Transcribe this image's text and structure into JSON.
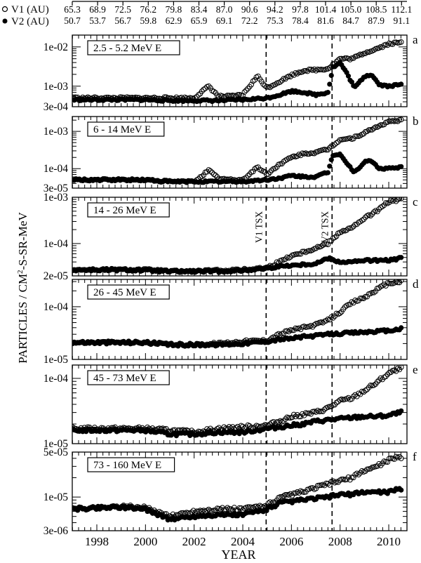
{
  "chart_data": {
    "type": "scatter",
    "title": "",
    "xlabel": "YEAR",
    "ylabel": "PARTICLES / CM^2-S-SR-MeV",
    "x_ticks": [
      "1998",
      "2000",
      "2002",
      "2004",
      "2006",
      "2008",
      "2010"
    ],
    "xlim": [
      1997.0,
      2010.8
    ],
    "legend": [
      {
        "name": "V1 (AU)",
        "marker": "open-circle"
      },
      {
        "name": "V2 (AU)",
        "marker": "filled-circle"
      }
    ],
    "top_axis": {
      "v1_au": [
        "65.3",
        "68.9",
        "72.5",
        "76.2",
        "79.8",
        "83.4",
        "87.0",
        "90.6",
        "94.2",
        "97.8",
        "101.4",
        "105.0",
        "108.5",
        "112.1"
      ],
      "v2_au": [
        "50.7",
        "53.7",
        "56.7",
        "59.8",
        "62.9",
        "65.9",
        "69.1",
        "72.2",
        "75.3",
        "78.4",
        "81.6",
        "84.7",
        "87.9",
        "91.1"
      ]
    },
    "markers": [
      {
        "label": "V1 TSX",
        "x": 2004.96
      },
      {
        "label": "V2 TSX",
        "x": 2007.67
      }
    ],
    "panels": [
      {
        "id": "a",
        "label": "2.5 - 5.2 MeV E",
        "y_ticks": [
          "3e-04",
          "1e-03",
          "1e-02"
        ],
        "ylim": [
          0.0003,
          0.02
        ],
        "series": [
          {
            "name": "V1",
            "x": [
              1997,
              1998,
              1999,
              2000,
              2001,
              2002,
              2002.6,
              2003,
              2003.5,
              2004,
              2004.6,
              2005,
              2005.5,
              2006,
              2006.5,
              2007,
              2007.5,
              2008,
              2008.5,
              2009,
              2009.5,
              2010,
              2010.5
            ],
            "values": [
              0.0005,
              0.0005,
              0.0005,
              0.0005,
              0.0005,
              0.0005,
              0.001,
              0.00055,
              0.00055,
              0.0006,
              0.0018,
              0.0009,
              0.0013,
              0.0019,
              0.0025,
              0.0026,
              0.0028,
              0.005,
              0.005,
              0.007,
              0.009,
              0.012,
              0.013
            ]
          },
          {
            "name": "V2",
            "x": [
              1997,
              1998,
              1999,
              2000,
              2001,
              2002,
              2003,
              2004,
              2005,
              2005.5,
              2006,
              2006.5,
              2007,
              2007.5,
              2007.7,
              2008,
              2008.3,
              2008.6,
              2009,
              2009.3,
              2009.6,
              2010,
              2010.5
            ],
            "values": [
              0.00045,
              0.00045,
              0.00045,
              0.00045,
              0.00043,
              0.00043,
              0.00043,
              0.00045,
              0.0005,
              0.0006,
              0.00075,
              0.0007,
              0.0006,
              0.0007,
              0.003,
              0.004,
              0.002,
              0.0009,
              0.0018,
              0.002,
              0.0011,
              0.001,
              0.0011
            ]
          }
        ]
      },
      {
        "id": "b",
        "label": "6 - 14 MeV E",
        "y_ticks": [
          "3e-05",
          "1e-04",
          "1e-03"
        ],
        "ylim": [
          3e-05,
          0.0025
        ],
        "series": [
          {
            "name": "V1",
            "x": [
              1997,
              1998,
              1999,
              2000,
              2001,
              2002,
              2002.6,
              2003,
              2003.5,
              2004,
              2004.6,
              2005,
              2005.5,
              2006,
              2006.5,
              2007,
              2007.5,
              2008,
              2008.5,
              2009,
              2009.5,
              2010,
              2010.5
            ],
            "values": [
              5e-05,
              5e-05,
              5e-05,
              5e-05,
              4.5e-05,
              4.5e-05,
              9e-05,
              5.5e-05,
              5e-05,
              5e-05,
              0.00011,
              7e-05,
              0.00013,
              0.0002,
              0.00025,
              0.00027,
              0.00033,
              0.0006,
              0.00065,
              0.0009,
              0.0013,
              0.0018,
              0.002
            ]
          },
          {
            "name": "V2",
            "x": [
              1997,
              1998,
              1999,
              2000,
              2001,
              2002,
              2003,
              2004,
              2005,
              2005.5,
              2006,
              2006.5,
              2007,
              2007.5,
              2007.7,
              2008,
              2008.3,
              2008.6,
              2009,
              2009.3,
              2009.6,
              2010,
              2010.5
            ],
            "values": [
              5e-05,
              5e-05,
              5e-05,
              5e-05,
              4.5e-05,
              4.5e-05,
              4.5e-05,
              4.5e-05,
              5e-05,
              5.5e-05,
              6.5e-05,
              6e-05,
              6e-05,
              8e-05,
              0.00023,
              0.00025,
              0.00013,
              8e-05,
              0.00015,
              0.00016,
              0.0001,
              0.0001,
              0.00011
            ]
          }
        ]
      },
      {
        "id": "c",
        "label": "14 - 26 MeV E",
        "y_ticks": [
          "2e-05",
          "1e-04",
          "1e-03"
        ],
        "ylim": [
          2e-05,
          0.001
        ],
        "series": [
          {
            "name": "V1",
            "x": [
              1997,
              1998,
              1999,
              2000,
              2001,
              2002,
              2003,
              2004,
              2005,
              2005.5,
              2006,
              2006.5,
              2007,
              2007.5,
              2008,
              2008.5,
              2009,
              2009.5,
              2010,
              2010.5
            ],
            "values": [
              2.7e-05,
              2.7e-05,
              2.7e-05,
              2.7e-05,
              2.5e-05,
              2.5e-05,
              2.6e-05,
              2.7e-05,
              3e-05,
              4e-05,
              5.5e-05,
              6.5e-05,
              8e-05,
              0.0001,
              0.00018,
              0.00022,
              0.00035,
              0.0005,
              0.0008,
              0.0009
            ]
          },
          {
            "name": "V2",
            "x": [
              1997,
              1998,
              1999,
              2000,
              2001,
              2002,
              2003,
              2004,
              2005,
              2005.5,
              2006,
              2006.5,
              2007,
              2007.5,
              2008,
              2008.5,
              2009,
              2009.5,
              2010,
              2010.5
            ],
            "values": [
              2.7e-05,
              2.7e-05,
              2.7e-05,
              2.6e-05,
              2.5e-05,
              2.5e-05,
              2.5e-05,
              2.6e-05,
              2.9e-05,
              3.2e-05,
              3.4e-05,
              3.5e-05,
              3.7e-05,
              4.8e-05,
              4e-05,
              4e-05,
              4.3e-05,
              4.3e-05,
              4.3e-05,
              4.8e-05
            ]
          }
        ]
      },
      {
        "id": "d",
        "label": "26 - 45 MeV E",
        "y_ticks": [
          "1e-05",
          "1e-04"
        ],
        "ylim": [
          1e-05,
          0.00033
        ],
        "series": [
          {
            "name": "V1",
            "x": [
              1997,
              1998,
              1999,
              2000,
              2001,
              2002,
              2003,
              2004,
              2005,
              2005.5,
              2006,
              2006.5,
              2007,
              2007.5,
              2008,
              2008.5,
              2009,
              2009.5,
              2010,
              2010.5
            ],
            "values": [
              2.1e-05,
              2.1e-05,
              2.1e-05,
              2.1e-05,
              1.9e-05,
              1.9e-05,
              2e-05,
              2.2e-05,
              2.3e-05,
              3e-05,
              3.6e-05,
              4e-05,
              4.5e-05,
              5.5e-05,
              8e-05,
              0.00012,
              0.00015,
              0.00021,
              0.00028,
              0.0003
            ]
          },
          {
            "name": "V2",
            "x": [
              1997,
              1998,
              1999,
              2000,
              2001,
              2002,
              2003,
              2004,
              2005,
              2005.5,
              2006,
              2006.5,
              2007,
              2007.5,
              2008,
              2008.5,
              2009,
              2009.5,
              2010,
              2010.5
            ],
            "values": [
              2.1e-05,
              2.1e-05,
              2.1e-05,
              2.1e-05,
              1.9e-05,
              1.9e-05,
              1.9e-05,
              2e-05,
              2.2e-05,
              2.4e-05,
              2.5e-05,
              2.7e-05,
              2.8e-05,
              3e-05,
              3.1e-05,
              3.2e-05,
              3.3e-05,
              3.4e-05,
              3.5e-05,
              3.8e-05
            ]
          }
        ]
      },
      {
        "id": "e",
        "label": "45 - 73 MeV E",
        "y_ticks": [
          "1e-05",
          "1e-04"
        ],
        "ylim": [
          1e-05,
          0.00016
        ],
        "series": [
          {
            "name": "V1",
            "x": [
              1997,
              1998,
              1999,
              2000,
              2001,
              2002,
              2003,
              2004,
              2005,
              2005.5,
              2006,
              2006.5,
              2007,
              2007.5,
              2008,
              2008.5,
              2009,
              2009.5,
              2010,
              2010.5
            ],
            "values": [
              1.7e-05,
              1.7e-05,
              1.7e-05,
              1.7e-05,
              1.6e-05,
              1.5e-05,
              1.7e-05,
              1.8e-05,
              1.9e-05,
              2.2e-05,
              2.6e-05,
              2.8e-05,
              3e-05,
              3.5e-05,
              4.5e-05,
              5e-05,
              6.5e-05,
              8.5e-05,
              0.00012,
              0.00014
            ]
          },
          {
            "name": "V2",
            "x": [
              1997,
              1998,
              1999,
              2000,
              2001,
              2002,
              2003,
              2004,
              2005,
              2005.5,
              2006,
              2006.5,
              2007,
              2007.5,
              2008,
              2008.5,
              2009,
              2009.5,
              2010,
              2010.5
            ],
            "values": [
              1.6e-05,
              1.6e-05,
              1.6e-05,
              1.6e-05,
              1.4e-05,
              1.4e-05,
              1.5e-05,
              1.5e-05,
              1.7e-05,
              1.8e-05,
              1.9e-05,
              2e-05,
              2.2e-05,
              2.3e-05,
              2.4e-05,
              2.5e-05,
              2.6e-05,
              2.6e-05,
              2.7e-05,
              3e-05
            ]
          }
        ]
      },
      {
        "id": "f",
        "label": "73 - 160 MeV E",
        "y_ticks": [
          "3e-06",
          "1e-05",
          "5e-05"
        ],
        "ylim": [
          3e-06,
          5e-05
        ],
        "series": [
          {
            "name": "V1",
            "x": [
              1997,
              1998,
              1999,
              2000,
              2001,
              2002,
              2003,
              2004,
              2005,
              2005.5,
              2006,
              2006.5,
              2007,
              2007.5,
              2008,
              2008.5,
              2009,
              2009.5,
              2010,
              2010.5
            ],
            "values": [
              6.5e-06,
              6.8e-06,
              7.2e-06,
              6.8e-06,
              5e-06,
              6e-06,
              6.5e-06,
              6.5e-06,
              7.5e-06,
              9.5e-06,
              1.1e-05,
              1.2e-05,
              1.4e-05,
              1.6e-05,
              1.8e-05,
              2e-05,
              2.6e-05,
              3e-05,
              3.8e-05,
              4.2e-05
            ]
          },
          {
            "name": "V2",
            "x": [
              1997,
              1998,
              1999,
              2000,
              2001,
              2002,
              2003,
              2004,
              2005,
              2005.5,
              2006,
              2006.5,
              2007,
              2007.5,
              2008,
              2008.5,
              2009,
              2009.5,
              2010,
              2010.5
            ],
            "values": [
              6.5e-06,
              6.8e-06,
              7e-06,
              6.5e-06,
              4.5e-06,
              5e-06,
              5.3e-06,
              5.3e-06,
              6.5e-06,
              8e-06,
              8.5e-06,
              9e-06,
              9.5e-06,
              1e-05,
              1.1e-05,
              1.1e-05,
              1.2e-05,
              1.2e-05,
              1.2e-05,
              1.35e-05
            ]
          }
        ]
      }
    ]
  }
}
